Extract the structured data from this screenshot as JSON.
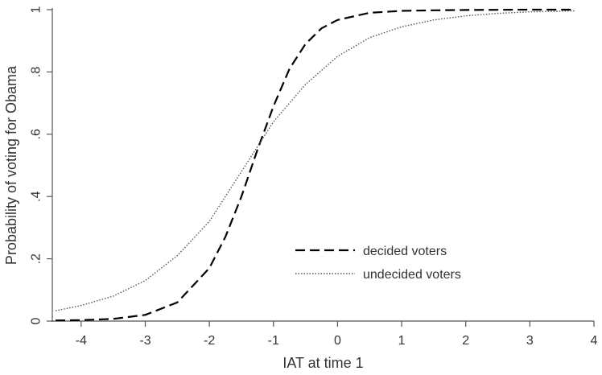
{
  "chart_data": {
    "type": "line",
    "xlabel": "IAT at time 1",
    "ylabel": "Probability of voting for Obama",
    "xlim": [
      -4.45,
      4.0
    ],
    "ylim": [
      0,
      1
    ],
    "x_ticks": [
      -4,
      -3,
      -2,
      -1,
      0,
      1,
      2,
      3,
      4
    ],
    "x_tick_labels": [
      "-4",
      "-3",
      "-2",
      "-1",
      "0",
      "1",
      "2",
      "3",
      "4"
    ],
    "y_ticks": [
      0,
      0.2,
      0.4,
      0.6,
      0.8,
      1
    ],
    "y_tick_labels": [
      "0",
      ".2",
      ".4",
      ".6",
      ".8",
      "1"
    ],
    "grid": false,
    "legend_position": "bottom-right",
    "series": [
      {
        "name": "decided voters",
        "style": "dashed",
        "color": "#000000",
        "x": [
          -4.4,
          -4.0,
          -3.5,
          -3.0,
          -2.5,
          -2.0,
          -1.75,
          -1.5,
          -1.25,
          -1.0,
          -0.75,
          -0.5,
          -0.25,
          0.0,
          0.5,
          1.0,
          1.5,
          2.0,
          3.0,
          3.7
        ],
        "y": [
          0.002,
          0.003,
          0.007,
          0.02,
          0.06,
          0.17,
          0.27,
          0.4,
          0.55,
          0.69,
          0.81,
          0.89,
          0.94,
          0.967,
          0.99,
          0.996,
          0.998,
          0.999,
          1.0,
          1.0
        ]
      },
      {
        "name": "undecided voters",
        "style": "dotted",
        "color": "#555555",
        "x": [
          -4.4,
          -4.0,
          -3.5,
          -3.0,
          -2.5,
          -2.0,
          -1.5,
          -1.25,
          -1.0,
          -0.5,
          0.0,
          0.5,
          1.0,
          1.5,
          2.0,
          2.5,
          3.0,
          3.7
        ],
        "y": [
          0.033,
          0.05,
          0.08,
          0.13,
          0.21,
          0.32,
          0.48,
          0.56,
          0.64,
          0.76,
          0.85,
          0.91,
          0.945,
          0.967,
          0.98,
          0.988,
          0.993,
          0.996
        ]
      }
    ]
  }
}
